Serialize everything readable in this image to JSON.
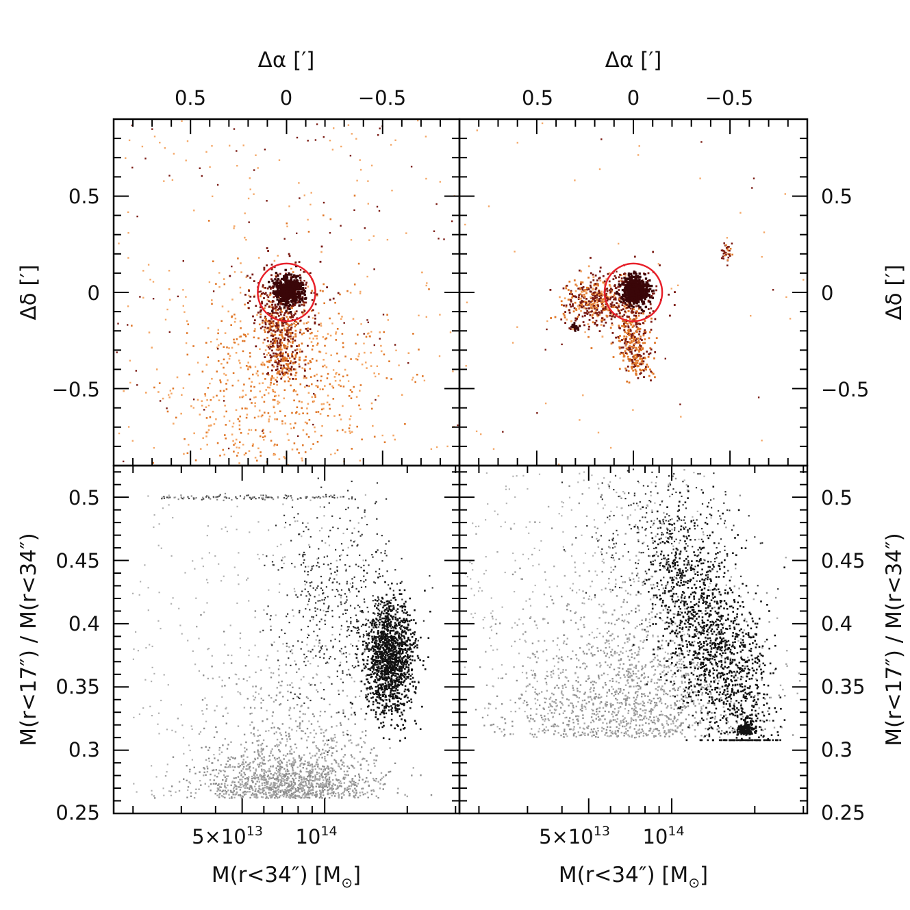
{
  "figure": {
    "colors": {
      "frame": "#000000",
      "circle": "#e8202a",
      "core": "#3a0608",
      "dark_red": "#7a1a12",
      "orange": "#e0782a",
      "light_orange": "#f4a868",
      "black_points": "#111111",
      "grey_points": "#9a9a9a"
    },
    "axes": {
      "top_xlabel_left": "Δα [′]",
      "top_xlabel_right": "Δα [′]",
      "top_xticks": [
        "0.5",
        "0",
        "−0.5"
      ],
      "top_ylabel_left": "Δδ [′]",
      "top_ylabel_right": "Δδ [′]",
      "top_yticks": [
        "0.5",
        "0",
        "−0.5"
      ],
      "bottom_ylabel_left": "M(r<17″) / M(r<34″)",
      "bottom_ylabel_right": "M(r<17″) / M(r<34″)",
      "bottom_yticks": [
        "0.5",
        "0.45",
        "0.4",
        "0.35",
        "0.3",
        "0.25"
      ],
      "bottom_xtick_a": "5×10",
      "bottom_xtick_a_exp": "13",
      "bottom_xtick_b": "10",
      "bottom_xtick_b_exp": "14",
      "bottom_xlabel_main": "M(r<34″) [M",
      "bottom_xlabel_sub": "⊙",
      "bottom_xlabel_close": "]"
    }
  },
  "chart_data": [
    {
      "type": "scatter",
      "panel": "top-left",
      "title": "",
      "xlabel": "Δα [′]",
      "ylabel": "Δδ [′]",
      "xlim": [
        0.9,
        -0.9
      ],
      "ylim": [
        -0.9,
        0.9
      ],
      "xticks": [
        0.5,
        0,
        -0.5
      ],
      "yticks": [
        0.5,
        0,
        -0.5
      ],
      "annotations": [
        {
          "shape": "circle",
          "center": [
            0,
            0
          ],
          "radius": 0.15,
          "color": "#e8202a"
        }
      ],
      "clusters": [
        {
          "name": "core",
          "center": [
            0.0,
            0.0
          ],
          "count": 420,
          "color": "#3a0608"
        },
        {
          "name": "stream",
          "center": [
            -0.02,
            -0.35
          ],
          "count": 320,
          "color": "#7a1a12"
        },
        {
          "name": "diffuse",
          "center": [
            0.05,
            -0.45
          ],
          "count": 900,
          "color": "#e0782a"
        }
      ]
    },
    {
      "type": "scatter",
      "panel": "top-right",
      "title": "",
      "xlabel": "Δα [′]",
      "ylabel": "Δδ [′]",
      "xlim": [
        0.9,
        -0.9
      ],
      "ylim": [
        -0.9,
        0.9
      ],
      "xticks": [
        0.5,
        0,
        -0.5
      ],
      "yticks": [
        0.5,
        0,
        -0.5
      ],
      "annotations": [
        {
          "shape": "circle",
          "center": [
            0,
            0
          ],
          "radius": 0.15,
          "color": "#e8202a"
        }
      ],
      "clusters": [
        {
          "name": "core",
          "center": [
            0.0,
            0.0
          ],
          "count": 420,
          "color": "#3a0608"
        },
        {
          "name": "western clump",
          "center": [
            0.22,
            -0.05
          ],
          "count": 380,
          "color": "#7a1a12"
        },
        {
          "name": "tail",
          "center": [
            0.05,
            -0.3
          ],
          "count": 320,
          "color": "#e0782a"
        },
        {
          "name": "small clump",
          "center": [
            0.3,
            -0.18
          ],
          "count": 20,
          "color": "#3a0608"
        },
        {
          "name": "eastern clump",
          "center": [
            -0.48,
            0.2
          ],
          "count": 30,
          "color": "#7a1a12"
        }
      ]
    },
    {
      "type": "scatter",
      "panel": "bottom-left",
      "title": "",
      "xlabel": "M(r<34″) [M⊙]",
      "ylabel": "M(r<17″) / M(r<34″)",
      "xscale": "log",
      "xlim": [
        17000000000000.0,
        310000000000000.0
      ],
      "ylim": [
        0.25,
        0.525
      ],
      "xticks": [
        50000000000000.0,
        100000000000000.0
      ],
      "yticks": [
        0.25,
        0.3,
        0.35,
        0.4,
        0.45,
        0.5
      ],
      "series": [
        {
          "name": "black points",
          "color": "#111111",
          "center": [
            175000000000000.0,
            0.37
          ],
          "count": 1800
        },
        {
          "name": "grey points",
          "color": "#9a9a9a",
          "center": [
            80000000000000.0,
            0.275
          ],
          "count": 1500
        }
      ]
    },
    {
      "type": "scatter",
      "panel": "bottom-right",
      "title": "",
      "xlabel": "M(r<34″) [M⊙]",
      "ylabel": "M(r<17″) / M(r<34″)",
      "xscale": "log",
      "xlim": [
        17000000000000.0,
        310000000000000.0
      ],
      "ylim": [
        0.25,
        0.525
      ],
      "xticks": [
        50000000000000.0,
        100000000000000.0
      ],
      "yticks": [
        0.25,
        0.3,
        0.35,
        0.4,
        0.45,
        0.5
      ],
      "series": [
        {
          "name": "black points",
          "color": "#111111",
          "center": [
            180000000000000.0,
            0.36
          ],
          "count": 1600
        },
        {
          "name": "grey points",
          "color": "#9a9a9a",
          "center": [
            80000000000000.0,
            0.34
          ],
          "count": 1500
        }
      ]
    }
  ]
}
